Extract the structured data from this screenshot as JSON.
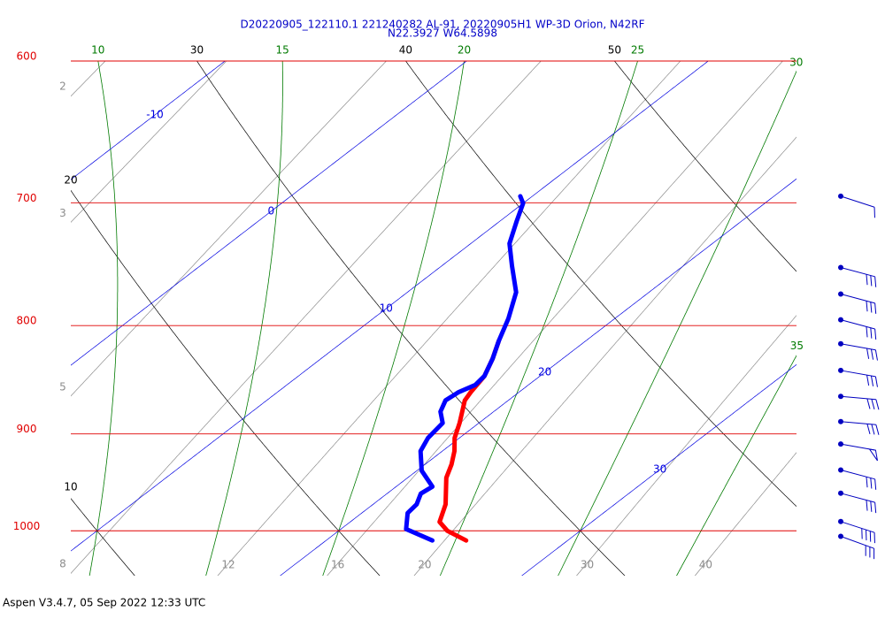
{
  "chart_data": {
    "type": "skewt",
    "title_lines": [
      "D20220905_122110.1 221240282 AL-91, 20220905H1 WP-3D Orion, N42RF",
      "N22.3927 W64.5898"
    ],
    "footer": "Aspen V3.4.7, 05 Sep 2022  12:33 UTC",
    "plim": [
      1050,
      600
    ],
    "pressure_ticks": [
      600,
      700,
      800,
      900,
      1000
    ],
    "isotherms": [
      -10,
      0,
      10,
      20,
      30
    ],
    "dry_adiabats": [
      10,
      20,
      30,
      40,
      50
    ],
    "moist_adiabats": [
      10,
      15,
      20,
      25,
      30,
      35
    ],
    "mixing_ratios": [
      2,
      3,
      5,
      8,
      12,
      16,
      20,
      30,
      40
    ],
    "colors": {
      "pressure": "#e00000",
      "isotherm": "#0000e0",
      "dry": "#000000",
      "moist": "#007a00",
      "mixing": "#8c8c8c",
      "title": "#0000c8",
      "wind": "#0000c0"
    },
    "temperature": {
      "color": "#ff0000",
      "pressure": [
        1010.6,
        1000,
        990.4,
        971.6,
        944.0,
        930.4,
        917.0,
        904.0,
        889.4,
        867.8,
        860.0,
        845.1,
        829.2,
        813.4
      ],
      "values": [
        25.8,
        24.5,
        23.7,
        23.0,
        21.6,
        21.1,
        20.5,
        19.8,
        19.2,
        18.2,
        18.0,
        17.7,
        17.1,
        16.4
      ]
    },
    "dewpoint": {
      "color": "#0000ff",
      "pressure": [
        1010.6,
        998.1,
        980.9,
        971.6,
        960.4,
        953.1,
        936.7,
        917.0,
        904.0,
        889.4,
        878.5,
        867.8,
        860.0,
        853.3,
        845.1,
        829.2,
        813.4,
        794.0,
        771.5,
        749.6,
        731.7,
        714.2,
        700.4,
        695.0
      ],
      "values": [
        24.4,
        22.7,
        21.9,
        21.8,
        21.4,
        21.5,
        20.2,
        19.1,
        18.7,
        18.5,
        17.8,
        17.4,
        17.5,
        17.8,
        17.7,
        17.1,
        16.4,
        15.6,
        14.5,
        12.9,
        11.6,
        10.7,
        10.0,
        9.5
      ]
    },
    "winds": {
      "pressure": [
        695,
        751,
        773,
        795,
        816,
        840,
        864,
        888,
        910,
        936,
        960,
        990,
        1006
      ],
      "speed": [
        10,
        30,
        30,
        30,
        30,
        30,
        30,
        30,
        50,
        30,
        30,
        40,
        30
      ],
      "direction": [
        108,
        105,
        105,
        105,
        100,
        100,
        95,
        95,
        100,
        105,
        105,
        108,
        110
      ]
    }
  }
}
